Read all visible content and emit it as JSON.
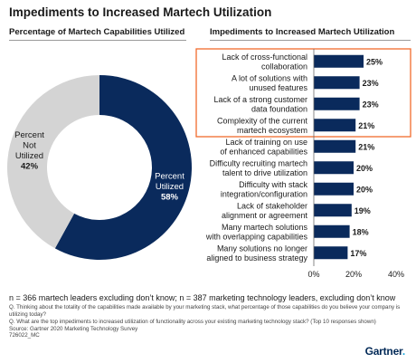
{
  "title": "Impediments to Increased Martech Utilization",
  "chart_data": [
    {
      "type": "pie",
      "title": "Percentage of Martech Capabilities Utilized",
      "slices": [
        {
          "label_lines": [
            "Percent",
            "Utilized"
          ],
          "value": 58,
          "value_label": "58%",
          "color": "#0a2a5c"
        },
        {
          "label_lines": [
            "Percent",
            "Not",
            "Utilized"
          ],
          "value": 42,
          "value_label": "42%",
          "color": "#d4d4d4"
        }
      ]
    },
    {
      "type": "bar",
      "orientation": "horizontal",
      "title": "Impediments to Increased Martech Utilization",
      "categories": [
        [
          "Lack of cross-functional",
          "collaboration"
        ],
        [
          "A lot of solutions with",
          "unused features"
        ],
        [
          "Lack of a strong customer",
          "data foundation"
        ],
        [
          "Complexity of the current",
          "martech ecosystem"
        ],
        [
          "Lack of training on use",
          "of enhanced capabilities"
        ],
        [
          "Difficulty recruiting martech",
          "talent to drive utilization"
        ],
        [
          "Difficulty with stack",
          "integration/configuration"
        ],
        [
          "Lack of stakeholder",
          "alignment or agreement"
        ],
        [
          "Many martech solutions",
          "with overlapping capabilities"
        ],
        [
          "Many solutions no longer",
          "aligned to business strategy"
        ]
      ],
      "values": [
        25,
        23,
        23,
        21,
        21,
        20,
        20,
        19,
        18,
        17
      ],
      "value_labels": [
        "25%",
        "23%",
        "23%",
        "21%",
        "21%",
        "20%",
        "20%",
        "19%",
        "18%",
        "17%"
      ],
      "highlighted_top": 4,
      "xlim": [
        0,
        40
      ],
      "xticks": [
        0,
        20,
        40
      ],
      "xtick_labels": [
        "0%",
        "20%",
        "40%"
      ],
      "bar_color": "#0a2a5c",
      "highlight_color": "#f26b2c"
    }
  ],
  "notes": {
    "n": "n = 366 martech leaders excluding don’t know; n = 387 marketing technology leaders, excluding don’t know",
    "q1": "Q. Thinking about the totality of the capabilities made available by your marketing stack, what percentage of those capabilities do you believe your company is utilizing today?",
    "q2": "Q. What are the top impediments to increased utilization of functionality across your existing marketing technology stack? (Top 10 responses shown)",
    "source": "Source: Gartner 2020 Marketing Technology Survey",
    "id": "726022_MC"
  },
  "logo": {
    "text": "Gartner",
    "dot": "."
  }
}
